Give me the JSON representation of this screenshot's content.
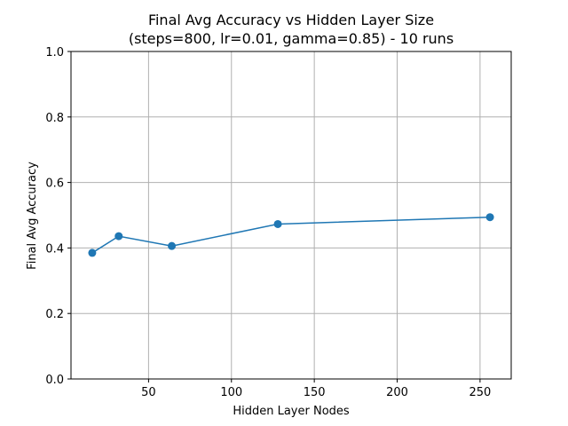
{
  "chart_data": {
    "type": "line",
    "title_line1": "Final Avg Accuracy vs Hidden Layer Size",
    "title_line2": "(steps=800, lr=0.01, gamma=0.85) - 10 runs",
    "xlabel": "Hidden Layer Nodes",
    "ylabel": "Final Avg Accuracy",
    "xlim": [
      3.2,
      268.8
    ],
    "ylim": [
      0,
      1
    ],
    "xticks": [
      50,
      100,
      150,
      200,
      250
    ],
    "xtick_labels": [
      "50",
      "100",
      "150",
      "200",
      "250"
    ],
    "yticks": [
      0,
      0.2,
      0.4,
      0.6,
      0.8,
      1.0
    ],
    "ytick_labels": [
      "0.0",
      "0.2",
      "0.4",
      "0.6",
      "0.8",
      "1.0"
    ],
    "grid": true,
    "series": [
      {
        "color": "#1f77b4",
        "marker": "circle",
        "x": [
          16,
          32,
          64,
          128,
          256
        ],
        "y": [
          0.385,
          0.436,
          0.406,
          0.473,
          0.494
        ]
      }
    ]
  }
}
